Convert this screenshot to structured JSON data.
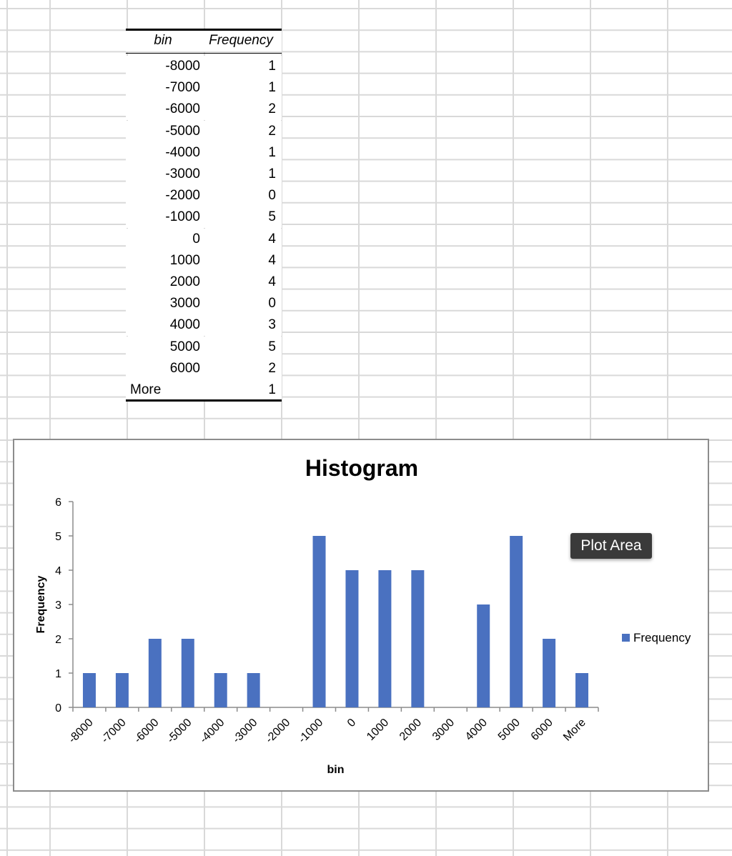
{
  "table": {
    "header_bin": "bin",
    "header_freq": "Frequency",
    "rows": [
      {
        "bin": "-8000",
        "freq": "1"
      },
      {
        "bin": "-7000",
        "freq": "1"
      },
      {
        "bin": "-6000",
        "freq": "2"
      },
      {
        "bin": "-5000",
        "freq": "2"
      },
      {
        "bin": "-4000",
        "freq": "1"
      },
      {
        "bin": "-3000",
        "freq": "1"
      },
      {
        "bin": "-2000",
        "freq": "0"
      },
      {
        "bin": "-1000",
        "freq": "5"
      },
      {
        "bin": "0",
        "freq": "4"
      },
      {
        "bin": "1000",
        "freq": "4"
      },
      {
        "bin": "2000",
        "freq": "4"
      },
      {
        "bin": "3000",
        "freq": "0"
      },
      {
        "bin": "4000",
        "freq": "3"
      },
      {
        "bin": "5000",
        "freq": "5"
      },
      {
        "bin": "6000",
        "freq": "2"
      },
      {
        "bin": "More",
        "freq": "1"
      }
    ]
  },
  "tooltip": {
    "label": "Plot Area"
  },
  "colors": {
    "bar": "#4a71c0",
    "gridline": "#d9d9d9",
    "chart_border": "#8c8c8c",
    "tooltip_bg": "#3a3a3a"
  },
  "chart_data": {
    "type": "bar",
    "title": "Histogram",
    "xlabel": "bin",
    "ylabel": "Frequency",
    "categories": [
      "-8000",
      "-7000",
      "-6000",
      "-5000",
      "-4000",
      "-3000",
      "-2000",
      "-1000",
      "0",
      "1000",
      "2000",
      "3000",
      "4000",
      "5000",
      "6000",
      "More"
    ],
    "series": [
      {
        "name": "Frequency",
        "values": [
          1,
          1,
          2,
          2,
          1,
          1,
          0,
          5,
          4,
          4,
          4,
          0,
          3,
          5,
          2,
          1
        ]
      }
    ],
    "ylim": [
      0,
      6
    ],
    "yticks": [
      0,
      1,
      2,
      3,
      4,
      5,
      6
    ],
    "grid": false,
    "legend": "right"
  }
}
